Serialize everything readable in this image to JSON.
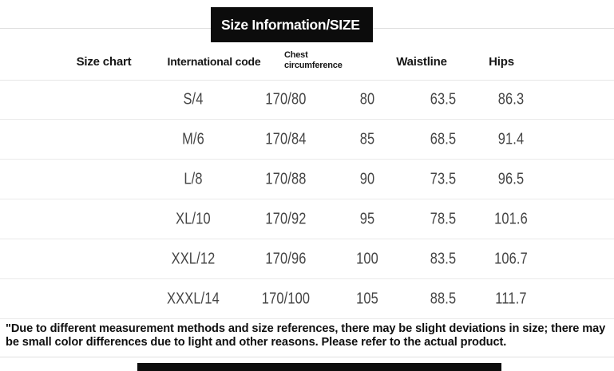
{
  "header": {
    "title": "Size Information/SIZE"
  },
  "table": {
    "headers": [
      "Size chart",
      "International code",
      "Chest circumference",
      "Waistline",
      "Hips"
    ],
    "rows": [
      [
        "S/4",
        "170/80",
        "80",
        "63.5",
        "86.3"
      ],
      [
        "M/6",
        "170/84",
        "85",
        "68.5",
        "91.4"
      ],
      [
        "L/8",
        "170/88",
        "90",
        "73.5",
        "96.5"
      ],
      [
        "XL/10",
        "170/92",
        "95",
        "78.5",
        "101.6"
      ],
      [
        "XXL/12",
        "170/96",
        "100",
        "83.5",
        "106.7"
      ],
      [
        "XXXL/14",
        "170/100",
        "105",
        "88.5",
        "111.7"
      ]
    ]
  },
  "disclaimer": "\"Due to different measurement methods and size references, there may be slight deviations in size; there may be small color differences due to light and other reasons. Please refer to the actual product.",
  "colors": {
    "title_bg": "#0c0c0c",
    "title_text": "#ffffff",
    "header_text": "#161616",
    "data_text": "#454545",
    "divider": "#eaeaea",
    "next_section_bar": "#0d0d0d"
  }
}
